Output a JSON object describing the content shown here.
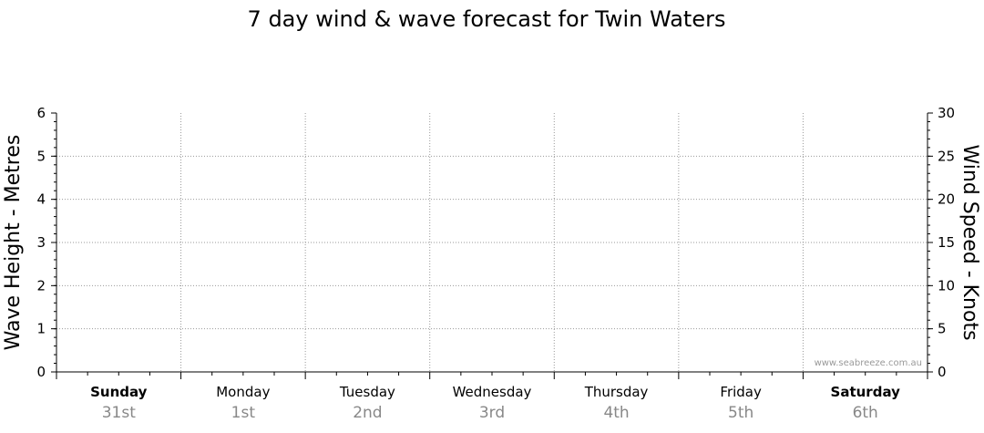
{
  "chart_data": {
    "type": "line",
    "title": "7 day wind & wave forecast for Twin Waters",
    "ylabel_left": "Wave Height - Metres",
    "ylabel_right": "Wind Speed - Knots",
    "ylim_left": [
      0,
      6
    ],
    "ylim_right": [
      0,
      30
    ],
    "yticks_left": [
      "0",
      "1",
      "2",
      "3",
      "4",
      "5",
      "6"
    ],
    "yticks_right": [
      "0",
      "5",
      "10",
      "15",
      "20",
      "25",
      "30"
    ],
    "categories": [
      {
        "day": "Sunday",
        "date": "31st",
        "bold": true
      },
      {
        "day": "Monday",
        "date": "1st",
        "bold": false
      },
      {
        "day": "Tuesday",
        "date": "2nd",
        "bold": false
      },
      {
        "day": "Wednesday",
        "date": "3rd",
        "bold": false
      },
      {
        "day": "Thursday",
        "date": "4th",
        "bold": false
      },
      {
        "day": "Friday",
        "date": "5th",
        "bold": false
      },
      {
        "day": "Saturday",
        "date": "6th",
        "bold": true
      }
    ],
    "series": [],
    "grid": true,
    "watermark": "www.seabreeze.com.au"
  }
}
